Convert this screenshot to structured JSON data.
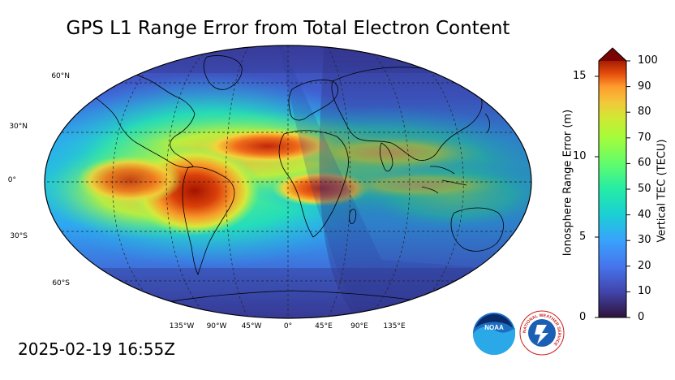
{
  "title": "GPS L1 Range Error from Total Electron Content",
  "timestamp": "2025-02-19 16:55Z",
  "map": {
    "lat_labels": [
      "60°N",
      "30°N",
      "0°",
      "30°S",
      "60°S"
    ],
    "lon_labels": [
      "135°W",
      "90°W",
      "45°W",
      "0°",
      "45°E",
      "90°E",
      "135°E"
    ]
  },
  "colorbar": {
    "left_label": "Ionosphere Range Error (m)",
    "right_label": "Vertical TEC (TECU)",
    "left_ticks": [
      "0",
      "5",
      "10",
      "15"
    ],
    "right_ticks": [
      "0",
      "10",
      "20",
      "30",
      "40",
      "50",
      "60",
      "70",
      "80",
      "90",
      "100"
    ],
    "range_tecu": [
      0,
      100
    ],
    "range_m": [
      0,
      16.2
    ]
  },
  "logos": {
    "noaa": "NOAA",
    "nws": "NATIONAL WEATHER SERVICE"
  },
  "colors": {
    "low": "#30123b",
    "mid": "#1ae4b6",
    "high": "#7a0403"
  }
}
